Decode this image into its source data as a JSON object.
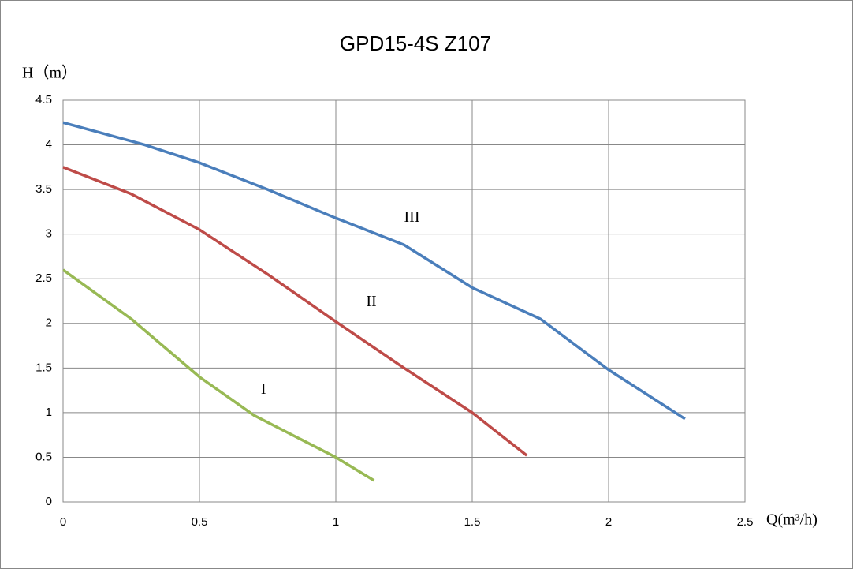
{
  "chart_data": {
    "type": "line",
    "title": "GPD15-4S  Z107",
    "y_label": "H（m）",
    "x_label": "Q(m³/h)",
    "xlim": [
      0,
      2.5
    ],
    "xticks": [
      0,
      0.5,
      1,
      1.5,
      2,
      2.5
    ],
    "ylim": [
      0,
      4.5
    ],
    "yticks": [
      0,
      0.5,
      1,
      1.5,
      2,
      2.5,
      3,
      3.5,
      4,
      4.5
    ],
    "grid": true,
    "series": [
      {
        "name": "I",
        "color": "#98b954",
        "x": [
          0,
          0.25,
          0.5,
          0.7,
          1,
          1.14
        ],
        "values": [
          2.6,
          2.05,
          1.4,
          0.97,
          0.5,
          0.24
        ]
      },
      {
        "name": "II",
        "color": "#be4b48",
        "x": [
          0,
          0.25,
          0.5,
          0.75,
          1,
          1.25,
          1.5,
          1.7
        ],
        "values": [
          3.75,
          3.45,
          3.05,
          2.55,
          2.02,
          1.5,
          1.0,
          0.52
        ]
      },
      {
        "name": "III",
        "color": "#4a7ebb",
        "x": [
          0,
          0.3,
          0.5,
          0.75,
          1,
          1.25,
          1.5,
          1.75,
          2,
          2.28
        ],
        "values": [
          4.25,
          4.0,
          3.8,
          3.5,
          3.18,
          2.88,
          2.4,
          2.05,
          1.48,
          0.93
        ]
      }
    ]
  }
}
